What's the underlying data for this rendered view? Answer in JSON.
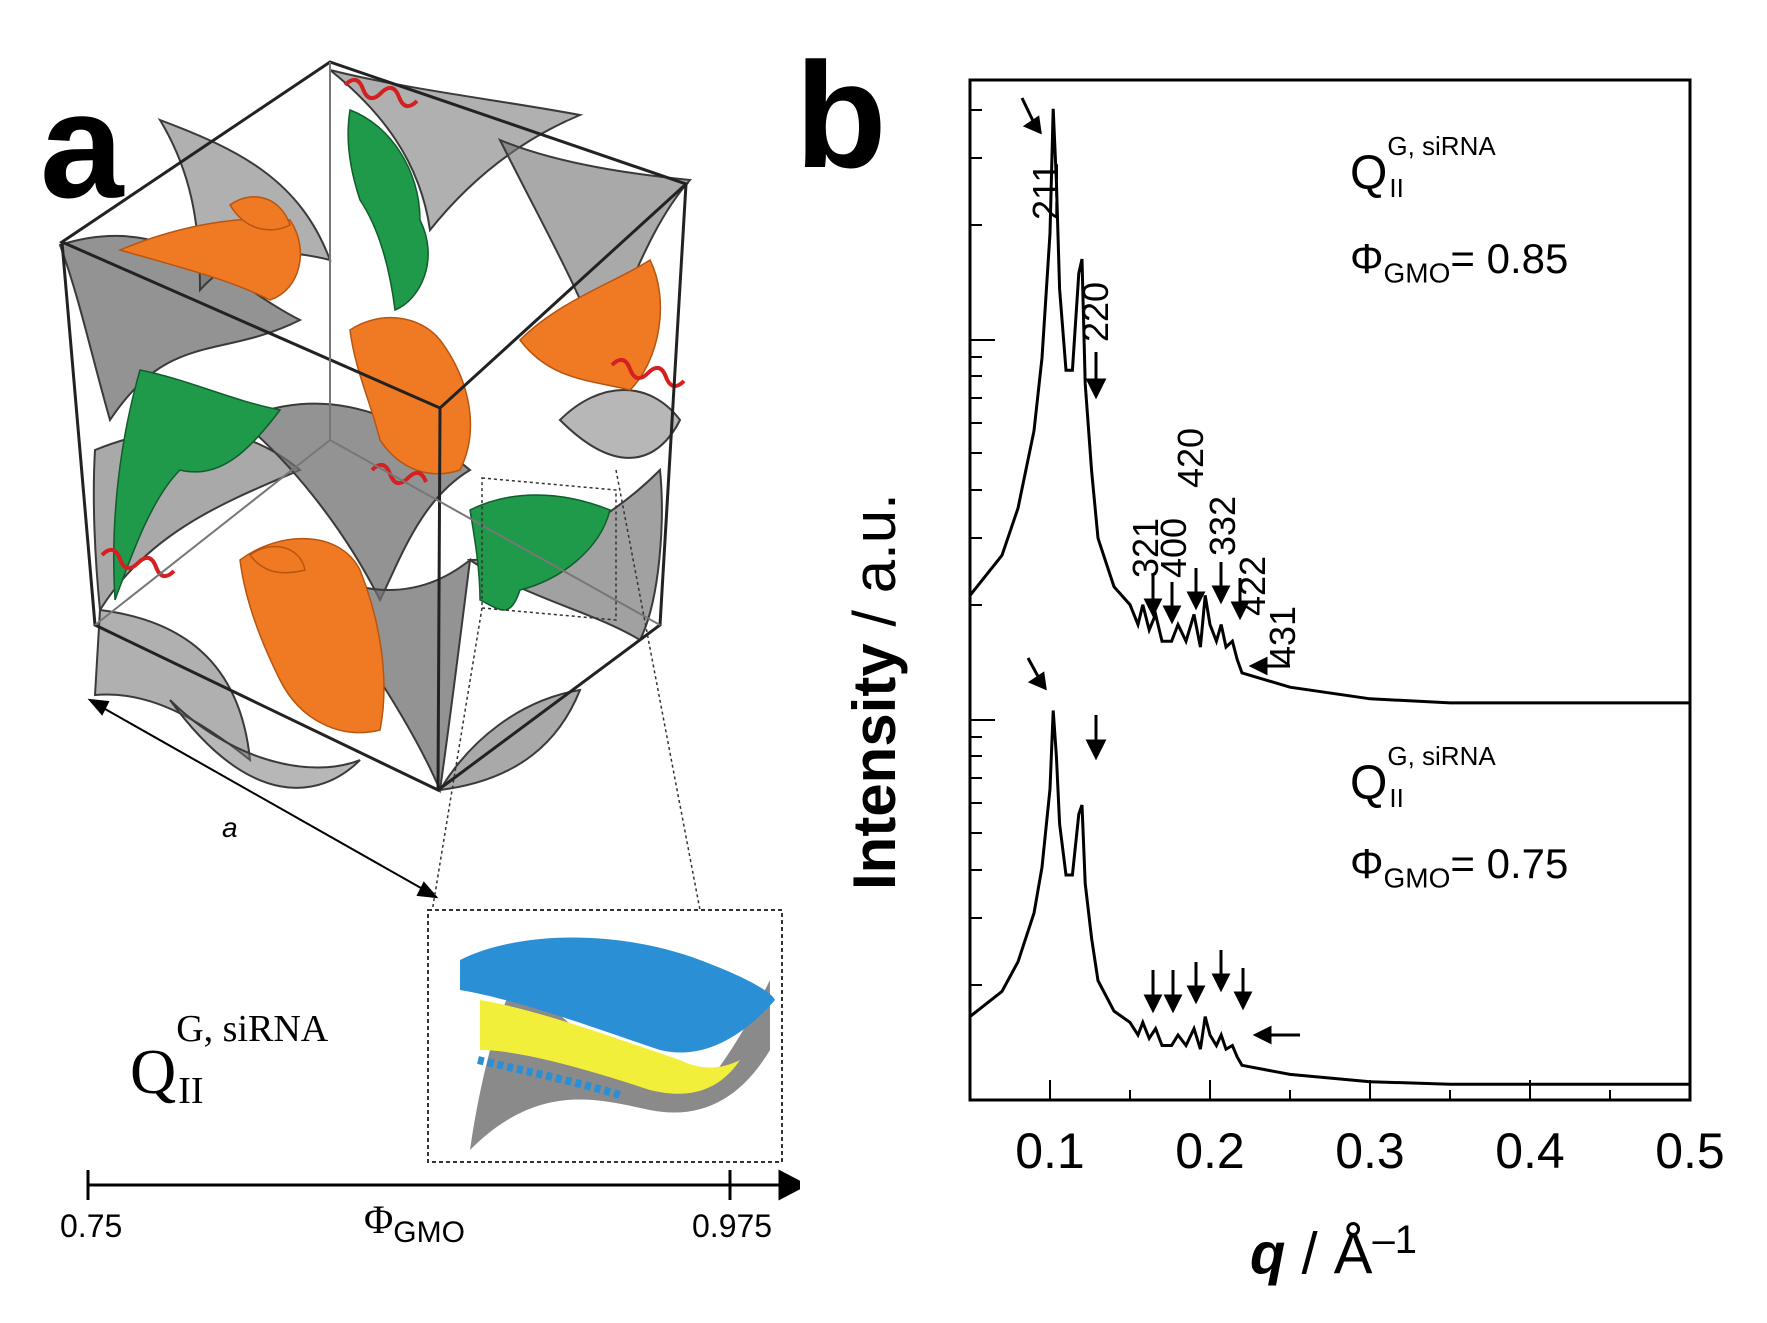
{
  "panel_a": {
    "letter": "a",
    "edge_label": "a",
    "phase_symbol": "Q",
    "phase_superscript": "G, siRNA",
    "phase_subscript": "II",
    "axis": {
      "symbol": "Φ",
      "subscript": "GMO",
      "left_value": "0.75",
      "right_value": "0.975"
    },
    "colors": {
      "orange_channel": "#f07a23",
      "green_channel": "#1f9a4a",
      "membrane": "#6f6f6f",
      "helix": "#d42020",
      "lipid_head": "#2b8fd6",
      "lipid_tail": "#f2ef3a"
    }
  },
  "panel_b": {
    "letter": "b",
    "ylabel_bold": "Intensity",
    "ylabel_rest": " / a.u.",
    "xlabel_symbol": "q",
    "xlabel_unit": " / Å",
    "xlabel_exp": "–1",
    "x_ticks": [
      "0.1",
      "0.2",
      "0.3",
      "0.4",
      "0.5"
    ],
    "top_curve": {
      "phase_symbol": "Q",
      "phase_superscript": "G, siRNA",
      "phase_subscript": "II",
      "phi_symbol": "Φ",
      "phi_subscript": "GMO",
      "phi_value": "= 0.85"
    },
    "bottom_curve": {
      "phase_symbol": "Q",
      "phase_superscript": "G, siRNA",
      "phase_subscript": "II",
      "phi_symbol": "Φ",
      "phi_subscript": "GMO",
      "phi_value": "= 0.75"
    },
    "peak_labels": [
      "211",
      "220",
      "321",
      "400",
      "420",
      "332",
      "422",
      "431"
    ]
  },
  "chart_data": {
    "type": "line",
    "xlabel": "q / Å–1",
    "ylabel": "Intensity / a.u.",
    "xlim": [
      0.05,
      0.5
    ],
    "yscale": "log",
    "x_ticks": [
      0.1,
      0.2,
      0.3,
      0.4,
      0.5
    ],
    "series": [
      {
        "name": "Φ GMO = 0.85",
        "x": [
          0.05,
          0.07,
          0.08,
          0.09,
          0.095,
          0.1,
          0.102,
          0.104,
          0.106,
          0.11,
          0.114,
          0.118,
          0.12,
          0.122,
          0.126,
          0.13,
          0.14,
          0.15,
          0.155,
          0.158,
          0.162,
          0.166,
          0.17,
          0.176,
          0.18,
          0.185,
          0.19,
          0.194,
          0.197,
          0.2,
          0.204,
          0.207,
          0.21,
          0.214,
          0.217,
          0.22,
          0.25,
          0.3,
          0.35,
          0.4,
          0.45,
          0.5
        ],
        "y": [
          0.4,
          0.5,
          0.65,
          1.0,
          1.5,
          3.0,
          6.0,
          4.0,
          2.2,
          1.4,
          1.4,
          2.4,
          2.6,
          1.3,
          0.8,
          0.55,
          0.42,
          0.38,
          0.34,
          0.38,
          0.33,
          0.36,
          0.31,
          0.31,
          0.34,
          0.31,
          0.36,
          0.3,
          0.4,
          0.34,
          0.31,
          0.34,
          0.3,
          0.31,
          0.28,
          0.26,
          0.24,
          0.225,
          0.22,
          0.22,
          0.22,
          0.22
        ]
      },
      {
        "name": "Φ GMO = 0.75",
        "x": [
          0.05,
          0.07,
          0.08,
          0.09,
          0.095,
          0.1,
          0.102,
          0.104,
          0.106,
          0.11,
          0.114,
          0.118,
          0.12,
          0.122,
          0.126,
          0.13,
          0.14,
          0.15,
          0.155,
          0.158,
          0.162,
          0.166,
          0.17,
          0.176,
          0.18,
          0.185,
          0.19,
          0.194,
          0.197,
          0.2,
          0.204,
          0.207,
          0.21,
          0.214,
          0.217,
          0.22,
          0.25,
          0.3,
          0.35,
          0.4,
          0.45,
          0.5
        ],
        "y": [
          0.4,
          0.5,
          0.65,
          1.0,
          1.5,
          3.0,
          6.0,
          4.0,
          2.2,
          1.4,
          1.4,
          2.4,
          2.6,
          1.3,
          0.8,
          0.55,
          0.42,
          0.38,
          0.34,
          0.38,
          0.33,
          0.36,
          0.31,
          0.31,
          0.34,
          0.31,
          0.36,
          0.3,
          0.4,
          0.34,
          0.31,
          0.34,
          0.3,
          0.31,
          0.28,
          0.26,
          0.24,
          0.225,
          0.22,
          0.22,
          0.22,
          0.22
        ]
      }
    ],
    "peak_labels": [
      "211",
      "220",
      "321",
      "400",
      "420",
      "332",
      "422",
      "431"
    ]
  }
}
